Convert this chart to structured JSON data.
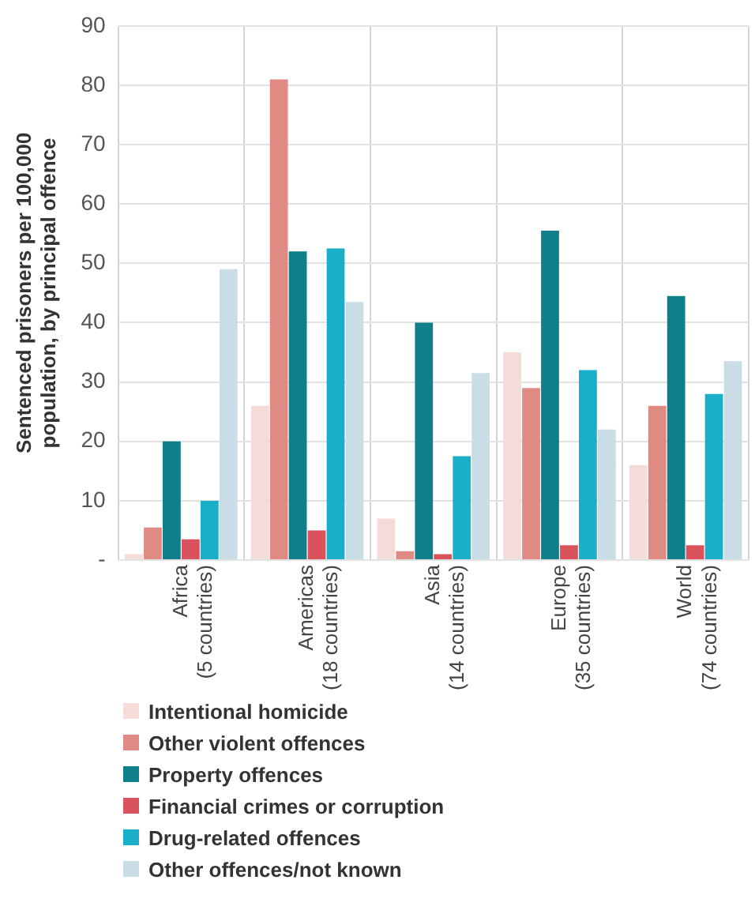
{
  "chart_data": {
    "type": "bar",
    "ylabel": "Sentenced prisoners per 100,000 population, by principal offence",
    "categories": [
      "Africa\n(5 countries)",
      "Americas\n(18 countries)",
      "Asia\n(14 countries)",
      "Europe\n(35 countries)",
      "World\n(74 countries)"
    ],
    "series": [
      {
        "name": "Intentional homicide",
        "color": "#f6dcd8",
        "values": [
          1,
          26,
          7,
          35,
          16
        ]
      },
      {
        "name": "Other violent offences",
        "color": "#e08a84",
        "values": [
          5.5,
          81,
          1.5,
          29,
          26
        ]
      },
      {
        "name": "Property offences",
        "color": "#0f7f8c",
        "values": [
          20,
          52,
          40,
          55.5,
          44.5
        ]
      },
      {
        "name": "Financial crimes or corruption",
        "color": "#d9525c",
        "values": [
          3.5,
          5,
          1,
          2.5,
          2.5
        ]
      },
      {
        "name": "Drug-related offences",
        "color": "#1aafc8",
        "values": [
          10,
          52.5,
          17.5,
          32,
          28
        ]
      },
      {
        "name": "Other offences/not known",
        "color": "#c8dde6",
        "values": [
          49,
          43.5,
          31.5,
          22,
          33.5
        ]
      }
    ],
    "ylim": [
      0,
      90
    ],
    "yticks": [
      {
        "value": 0,
        "label": "-"
      },
      10,
      20,
      30,
      40,
      50,
      60,
      70,
      80,
      90
    ],
    "grid": true,
    "legend": "bottom"
  }
}
